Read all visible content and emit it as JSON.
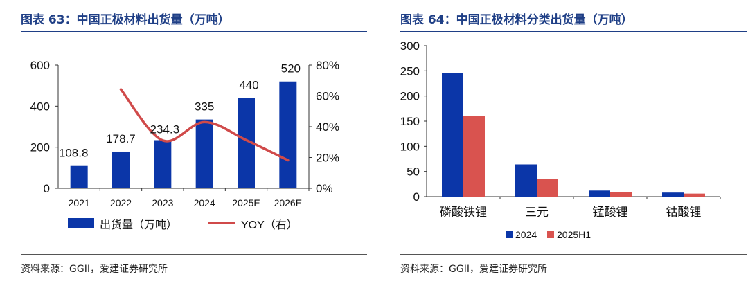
{
  "left": {
    "title": "图表 63：中国正极材料出货量（万吨）",
    "source": "资料来源：GGII，爱建证券研究所",
    "legend": {
      "bar": "出货量（万吨）",
      "line": "YOY（右）"
    }
  },
  "right": {
    "title": "图表 64：中国正极材料分类出货量（万吨）",
    "source": "资料来源：GGII，爱建证券研究所"
  },
  "colors": {
    "title": "#1f3f86",
    "bar_blue": "#0b36a8",
    "line_red": "#d04a4a",
    "bar_red": "#d9534f"
  },
  "chart_data": [
    {
      "type": "bar",
      "title": "中国正极材料出货量（万吨）",
      "categories": [
        "2021",
        "2022",
        "2023",
        "2024",
        "2025E",
        "2026E"
      ],
      "series": [
        {
          "name": "出货量（万吨）",
          "type": "bar",
          "axis": "left",
          "values": [
            108.8,
            178.7,
            234.3,
            335,
            440,
            520
          ]
        },
        {
          "name": "YOY（右）",
          "type": "line",
          "axis": "right",
          "values": [
            null,
            64.2,
            31.1,
            43.0,
            31.3,
            18.2
          ]
        }
      ],
      "data_labels": [
        "108.8",
        "178.7",
        "234.3",
        "335",
        "440",
        "520"
      ],
      "y_left": {
        "min": 0,
        "max": 600,
        "ticks": [
          "0",
          "200",
          "400",
          "600"
        ]
      },
      "y_right": {
        "min": 0,
        "max": 80,
        "ticks": [
          "0%",
          "20%",
          "40%",
          "60%",
          "80%"
        ]
      },
      "grid": false,
      "legend_position": "bottom"
    },
    {
      "type": "bar",
      "title": "中国正极材料分类出货量（万吨）",
      "categories": [
        "磷酸铁锂",
        "三元",
        "锰酸锂",
        "钴酸锂"
      ],
      "series": [
        {
          "name": "2024",
          "values": [
            245,
            64,
            12,
            8
          ]
        },
        {
          "name": "2025H1",
          "values": [
            160,
            35,
            9,
            6
          ]
        }
      ],
      "ylim": [
        0,
        300
      ],
      "y_ticks": [
        "0",
        "50",
        "100",
        "150",
        "200",
        "250",
        "300"
      ],
      "grid": false,
      "legend_position": "bottom"
    }
  ]
}
